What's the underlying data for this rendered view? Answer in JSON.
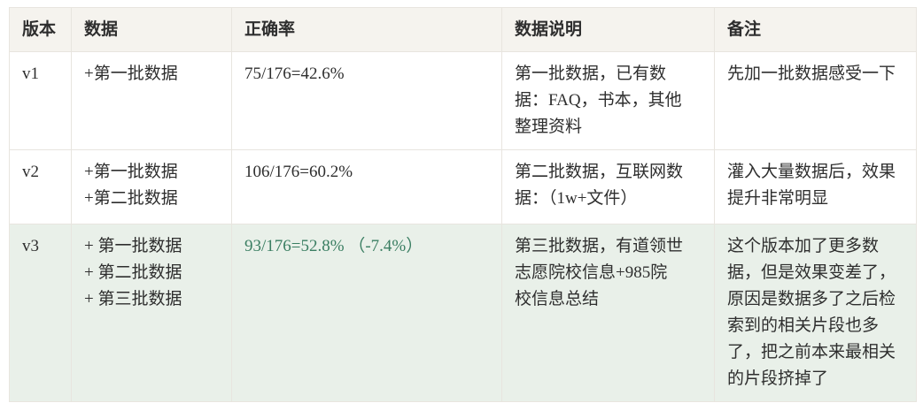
{
  "table": {
    "headers": [
      "版本",
      "数据",
      "正确率",
      "数据说明",
      "备注"
    ],
    "rows": [
      {
        "version": "v1",
        "data": "+第一批数据",
        "accuracy": "75/176=42.6%",
        "description": "第一批数据，已有数\n据：FAQ，书本，其他\n整理资料",
        "note": "先加一批数据感受一下",
        "highlighted": false
      },
      {
        "version": "v2",
        "data": "+第一批数据\n+第二批数据",
        "accuracy": "106/176=60.2%",
        "description": "第二批数据，互联网数\n据：（1w+文件）",
        "note": "灌入大量数据后，效果\n提升非常明显",
        "highlighted": false
      },
      {
        "version": "v3",
        "data": "+ 第一批数据\n+ 第二批数据\n+ 第三批数据",
        "accuracy": "93/176=52.8% （-7.4%）",
        "description": "第三批数据，有道领世\n志愿院校信息+985院\n校信息总结",
        "note": "这个版本加了更多数\n据，但是效果变差了，\n原因是数据多了之后检\n索到的相关片段也多\n了，把之前本来最相关\n的片段挤掉了",
        "highlighted": true
      }
    ]
  },
  "colors": {
    "header_bg": "#f5f3ee",
    "highlight_bg": "#e9f0e9",
    "border": "#e8e5df",
    "text": "#2e2e2e",
    "accent_green": "#3a7e62",
    "page_bg": "#ffffff"
  }
}
